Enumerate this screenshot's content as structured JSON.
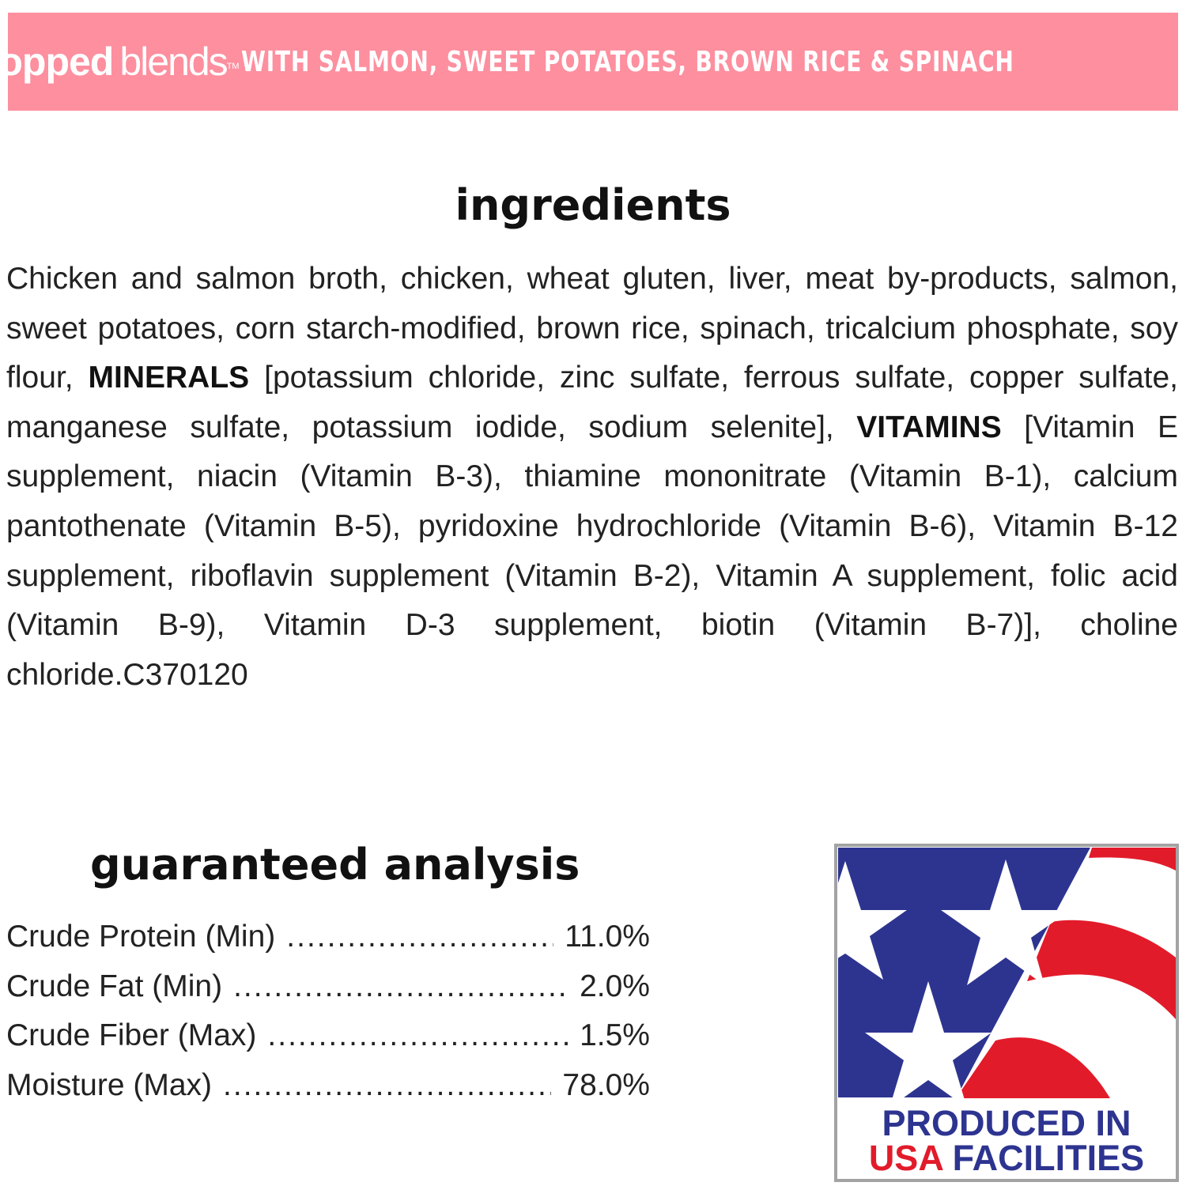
{
  "banner": {
    "brand_bold": "chopped",
    "brand_light": "blends",
    "trademark": "TM",
    "subtitle": "WITH SALMON, SWEET POTATOES, BROWN RICE & SPINACH",
    "color": "#fd8f9f"
  },
  "ingredients": {
    "title": "ingredients",
    "part1": "Chicken and salmon broth, chicken, wheat gluten, liver, meat by-products, salmon, sweet potatoes, corn starch-modified, brown rice, spinach, tricalcium phosphate, soy flour, ",
    "minerals_label": "MINERALS",
    "part2": " [potassium chloride, zinc sulfate, ferrous sulfate, copper sulfate, manganese sulfate, potassium iodide, sodium selenite], ",
    "vitamins_label": "VITAMINS",
    "part3": " [Vitamin E supplement, niacin (Vitamin B-3), thiamine mononitrate (Vitamin B-1), calcium pantothenate (Vitamin B-5), pyridoxine hydrochloride (Vitamin B-6), Vitamin B-12 supplement, riboflavin supplement (Vitamin B-2), Vitamin A supplement, folic acid (Vitamin B-9), Vitamin D-3 supplement, biotin (Vitamin B-7)], choline chloride.",
    "code": "C370120"
  },
  "analysis": {
    "title": "guaranteed analysis",
    "rows": [
      {
        "label": "Crude Protein (Min)",
        "value": "11.0%"
      },
      {
        "label": "Crude Fat (Min)",
        "value": "2.0%"
      },
      {
        "label": "Crude Fiber (Max)",
        "value": "1.5%"
      },
      {
        "label": "Moisture (Max)",
        "value": "78.0%"
      }
    ]
  },
  "badge": {
    "line1": "PRODUCED IN",
    "line2_red": "USA",
    "line2_blue": " FACILITIES",
    "colors": {
      "blue": "#2d3490",
      "red": "#e21b2a"
    }
  }
}
